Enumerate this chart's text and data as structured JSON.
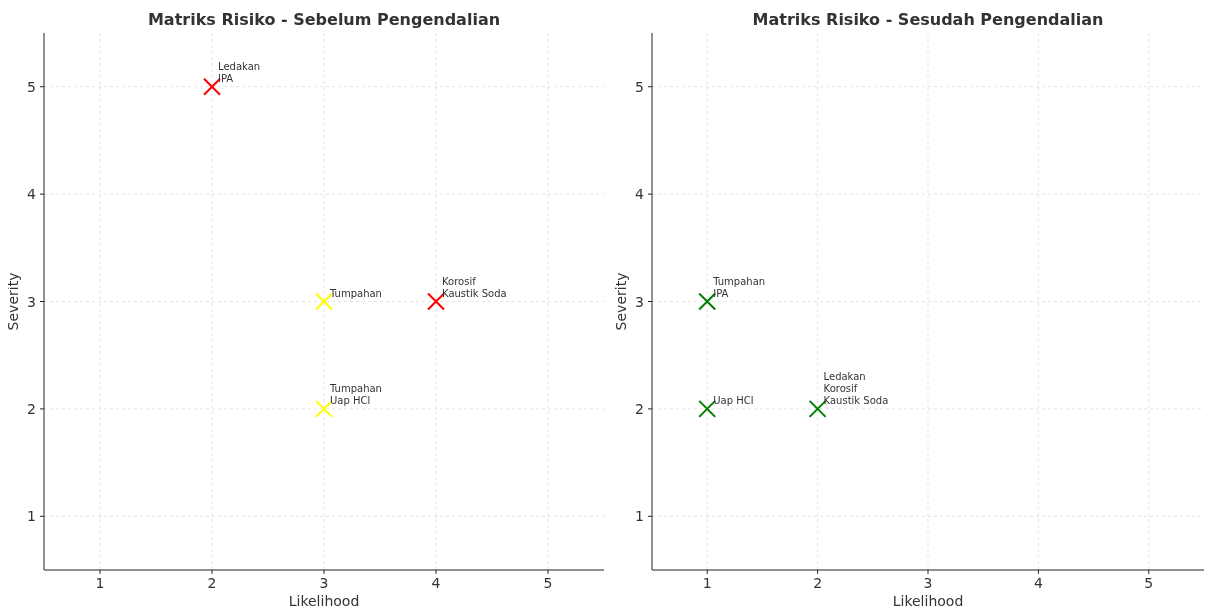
{
  "chart_data": [
    {
      "type": "scatter",
      "title": "Matriks Risiko - Sebelum Pengendalian",
      "xlabel": "Likelihood",
      "ylabel": "Severity",
      "xlim": [
        0.5,
        5.5
      ],
      "ylim": [
        0.5,
        5.5
      ],
      "xticks": [
        1,
        2,
        3,
        4,
        5
      ],
      "yticks": [
        1,
        2,
        3,
        4,
        5
      ],
      "grid": true,
      "marker": "cross",
      "series": [
        {
          "x": [
            2,
            3,
            4,
            3
          ],
          "values": [
            5,
            3,
            3,
            2
          ],
          "colors": [
            "#ff0000",
            "#ffff00",
            "#ff0000",
            "#ffff00"
          ]
        }
      ],
      "annotations": [
        {
          "text": "IPA",
          "x": 2,
          "y": 5
        },
        {
          "text": "Ledakan",
          "x": 2,
          "y": 5
        },
        {
          "text": "Tumpahan",
          "x": 3,
          "y": 3
        },
        {
          "text": "Kaustik Soda",
          "x": 4,
          "y": 3
        },
        {
          "text": "Korosif",
          "x": 4,
          "y": 3
        },
        {
          "text": "Uap HCl",
          "x": 3,
          "y": 2
        },
        {
          "text": "Tumpahan",
          "x": 3,
          "y": 2
        }
      ]
    },
    {
      "type": "scatter",
      "title": "Matriks Risiko - Sesudah Pengendalian",
      "xlabel": "Likelihood",
      "ylabel": "Severity",
      "xlim": [
        0.5,
        5.5
      ],
      "ylim": [
        0.5,
        5.5
      ],
      "xticks": [
        1,
        2,
        3,
        4,
        5
      ],
      "yticks": [
        1,
        2,
        3,
        4,
        5
      ],
      "grid": true,
      "marker": "cross",
      "series": [
        {
          "x": [
            1,
            1,
            2
          ],
          "values": [
            3,
            2,
            2
          ],
          "colors": [
            "#008000",
            "#008000",
            "#008000"
          ]
        }
      ],
      "annotations": [
        {
          "text": "IPA",
          "x": 1,
          "y": 3
        },
        {
          "text": "Tumpahan",
          "x": 1,
          "y": 3
        },
        {
          "text": "Uap HCl",
          "x": 1,
          "y": 2
        },
        {
          "text": "Kaustik Soda",
          "x": 2,
          "y": 2
        },
        {
          "text": "Korosif",
          "x": 2,
          "y": 2
        },
        {
          "text": "Ledakan",
          "x": 2,
          "y": 2
        }
      ]
    }
  ]
}
